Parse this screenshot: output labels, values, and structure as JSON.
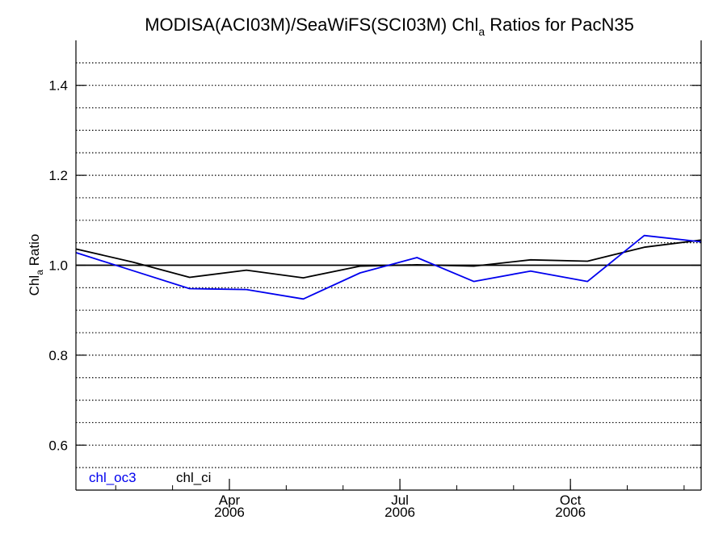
{
  "chart_data": {
    "type": "line",
    "title_main": "MODISA(ACI03M)/SeaWiFS(SCI03M)  Chl",
    "title_sub": "a",
    "title_tail": " Ratios for PacN35",
    "ylabel_main": "Chl",
    "ylabel_sub": "a",
    "ylabel_tail": " Ratio",
    "ylim": [
      0.5,
      1.5
    ],
    "y_ticks": [
      0.6,
      0.8,
      1.0,
      1.2,
      1.4
    ],
    "y_tick_labels": [
      "0.6",
      "0.8",
      "1.0",
      "1.2",
      "1.4"
    ],
    "y_dotted_grid_step": 0.05,
    "reference_line": 1.0,
    "xlim_months": [
      0,
      11
    ],
    "x_tick_months": [
      2.7,
      5.7,
      8.7
    ],
    "x_tick_labels": [
      {
        "month": "Apr",
        "year": "2006"
      },
      {
        "month": "Jul",
        "year": "2006"
      },
      {
        "month": "Oct",
        "year": "2006"
      }
    ],
    "series": [
      {
        "name": "chl_oc3",
        "color": "#0000ee",
        "x": [
          0,
          1,
          2,
          3,
          4,
          5,
          6,
          7,
          8,
          9,
          10,
          11
        ],
        "values": [
          1.028,
          0.988,
          0.948,
          0.946,
          0.925,
          0.983,
          1.017,
          0.964,
          0.987,
          0.964,
          1.066,
          1.052
        ]
      },
      {
        "name": "chl_ci",
        "color": "#000000",
        "x": [
          0,
          1,
          2,
          3,
          4,
          5,
          6,
          7,
          8,
          9,
          10,
          11
        ],
        "values": [
          1.036,
          1.007,
          0.973,
          0.989,
          0.972,
          0.998,
          1.001,
          0.998,
          1.012,
          1.009,
          1.04,
          1.056
        ]
      }
    ],
    "legend_placement": "bottom-left",
    "grid": "horizontal dotted"
  }
}
